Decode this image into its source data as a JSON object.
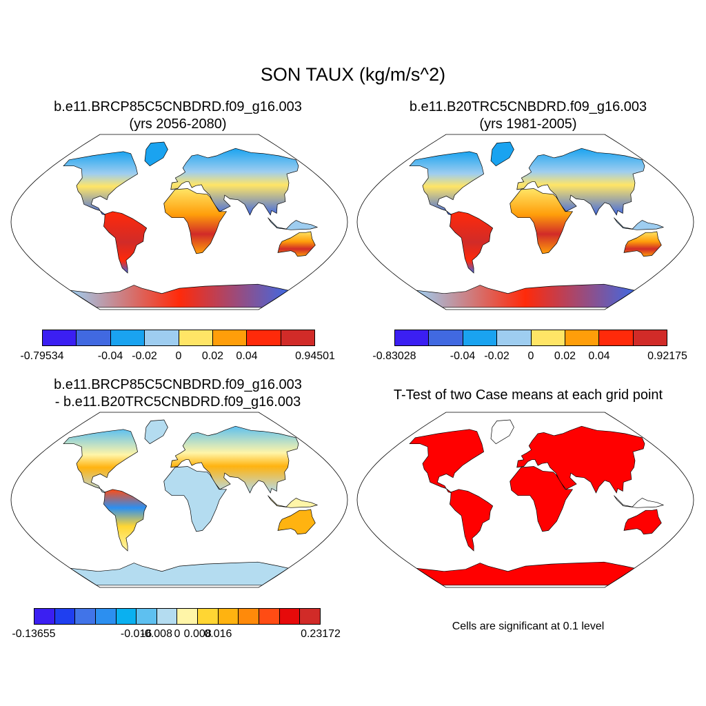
{
  "title": "SON TAUX (kg/m/s^2)",
  "panels": [
    {
      "title_line1": "b.e11.BRCP85C5CNBDRD.f09_g16.003",
      "title_line2": "(yrs 2056-2080)",
      "colorbar": {
        "colors": [
          "#3b1ff2",
          "#4169e1",
          "#1aa3f0",
          "#9ecdf0",
          "#ffe566",
          "#ff9e0a",
          "#ff2a0a",
          "#d12b28"
        ],
        "ticks": [
          "-0.79534",
          "-0.04",
          "-0.02",
          "0",
          "0.02",
          "0.04",
          "0.94501"
        ]
      }
    },
    {
      "title_line1": "b.e11.B20TRC5CNBDRD.f09_g16.003",
      "title_line2": "(yrs 1981-2005)",
      "colorbar": {
        "colors": [
          "#3b1ff2",
          "#4169e1",
          "#1aa3f0",
          "#9ecdf0",
          "#ffe566",
          "#ff9e0a",
          "#ff2a0a",
          "#d12b28"
        ],
        "ticks": [
          "-0.83028",
          "-0.04",
          "-0.02",
          "0",
          "0.02",
          "0.04",
          "0.92175"
        ]
      }
    },
    {
      "title_line1": "b.e11.BRCP85C5CNBDRD.f09_g16.003",
      "title_line2": "- b.e11.B20TRC5CNBDRD.f09_g16.003",
      "colorbar": {
        "colors": [
          "#3b1ff2",
          "#1f3ff0",
          "#4174e8",
          "#2c8ff0",
          "#0ab0f0",
          "#5ec0f0",
          "#b4dcf0",
          "#fff5a8",
          "#ffd633",
          "#ffb310",
          "#ff8a0a",
          "#ff4c14",
          "#e60a0a",
          "#d12b28"
        ],
        "ticks": [
          "-0.13655",
          "-0.016",
          "-0.008",
          "0",
          "0.008",
          "0.016",
          "0.23172"
        ]
      }
    },
    {
      "title_line1": "T-Test of two Case means at each grid point",
      "note": "Cells are significant at 0.1 level"
    }
  ],
  "colors": {
    "significant": "#ff0000",
    "outline": "#000000"
  }
}
